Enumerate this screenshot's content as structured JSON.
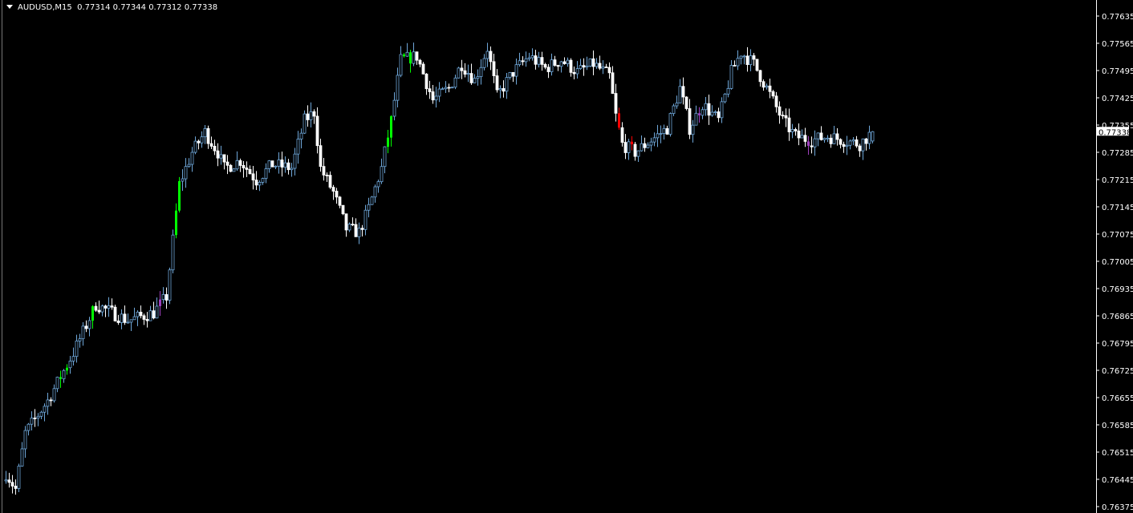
{
  "header": {
    "symbol": "AUDUSD,M15",
    "ohlc": "0.77314 0.77344 0.77312 0.77338"
  },
  "chart_data": {
    "type": "candlestick",
    "symbol": "AUDUSD",
    "timeframe": "M15",
    "last_bar": {
      "open": 0.77314,
      "high": 0.77344,
      "low": 0.77312,
      "close": 0.77338
    },
    "current_price_label": "0.77338",
    "ylim": [
      0.76375,
      0.77665
    ],
    "y_ticks": [
      "0.77635",
      "0.77565",
      "0.77495",
      "0.77425",
      "0.77355",
      "0.77285",
      "0.77215",
      "0.77145",
      "0.77075",
      "0.77005",
      "0.76935",
      "0.76865",
      "0.76795",
      "0.76725",
      "0.76655",
      "0.76585",
      "0.76515",
      "0.76445",
      "0.76375"
    ],
    "bar_count": 271,
    "close_path": [
      [
        0,
        0.76461
      ],
      [
        3,
        0.7642
      ],
      [
        6,
        0.76564
      ],
      [
        13,
        0.76647
      ],
      [
        21,
        0.7677
      ],
      [
        28,
        0.76894
      ],
      [
        33,
        0.76873
      ],
      [
        38,
        0.76853
      ],
      [
        46,
        0.76873
      ],
      [
        50,
        0.76914
      ],
      [
        52,
        0.77059
      ],
      [
        54,
        0.77203
      ],
      [
        58,
        0.77285
      ],
      [
        62,
        0.77337
      ],
      [
        66,
        0.77285
      ],
      [
        68,
        0.77244
      ],
      [
        73,
        0.77264
      ],
      [
        78,
        0.77213
      ],
      [
        83,
        0.77254
      ],
      [
        89,
        0.77244
      ],
      [
        93,
        0.77367
      ],
      [
        96,
        0.77388
      ],
      [
        98,
        0.77244
      ],
      [
        102,
        0.77182
      ],
      [
        106,
        0.77089
      ],
      [
        110,
        0.77079
      ],
      [
        113,
        0.77141
      ],
      [
        117,
        0.77244
      ],
      [
        120,
        0.77367
      ],
      [
        122,
        0.7747
      ],
      [
        123,
        0.77522
      ],
      [
        128,
        0.77532
      ],
      [
        133,
        0.77419
      ],
      [
        138,
        0.7745
      ],
      [
        142,
        0.77512
      ],
      [
        146,
        0.7747
      ],
      [
        150,
        0.77553
      ],
      [
        153,
        0.77429
      ],
      [
        158,
        0.77491
      ],
      [
        163,
        0.77532
      ],
      [
        168,
        0.77501
      ],
      [
        173,
        0.77522
      ],
      [
        178,
        0.77491
      ],
      [
        183,
        0.77512
      ],
      [
        188,
        0.77481
      ],
      [
        190,
        0.77378
      ],
      [
        192,
        0.77306
      ],
      [
        196,
        0.77285
      ],
      [
        201,
        0.77316
      ],
      [
        206,
        0.77347
      ],
      [
        210,
        0.7745
      ],
      [
        213,
        0.77347
      ],
      [
        217,
        0.77409
      ],
      [
        222,
        0.77367
      ],
      [
        226,
        0.77491
      ],
      [
        229,
        0.77542
      ],
      [
        233,
        0.77512
      ],
      [
        237,
        0.7745
      ],
      [
        242,
        0.77367
      ],
      [
        246,
        0.77326
      ],
      [
        251,
        0.77316
      ],
      [
        256,
        0.77326
      ],
      [
        261,
        0.77316
      ],
      [
        266,
        0.77306
      ],
      [
        270,
        0.77338
      ]
    ],
    "highlighted_bars": [
      {
        "index": 17,
        "color": "#00ff00"
      },
      {
        "index": 19,
        "color": "#00ff00"
      },
      {
        "index": 27,
        "color": "#00ff00"
      },
      {
        "index": 48,
        "color": "#a040c0"
      },
      {
        "index": 53,
        "color": "#00ff00"
      },
      {
        "index": 54,
        "color": "#00ff00"
      },
      {
        "index": 119,
        "color": "#00ff00"
      },
      {
        "index": 120,
        "color": "#00ff00"
      },
      {
        "index": 124,
        "color": "#00ff00"
      },
      {
        "index": 126,
        "color": "#00ff00"
      },
      {
        "index": 191,
        "color": "#ff0000"
      },
      {
        "index": 195,
        "color": "#ff0000"
      },
      {
        "index": 216,
        "color": "#a040c0"
      },
      {
        "index": 250,
        "color": "#a040c0"
      }
    ],
    "colors": {
      "background": "#000000",
      "bull_outline": "#6ea6d8",
      "bull_body": "#000000",
      "bear_body": "#ffffff",
      "axis": "#ffffff"
    }
  }
}
